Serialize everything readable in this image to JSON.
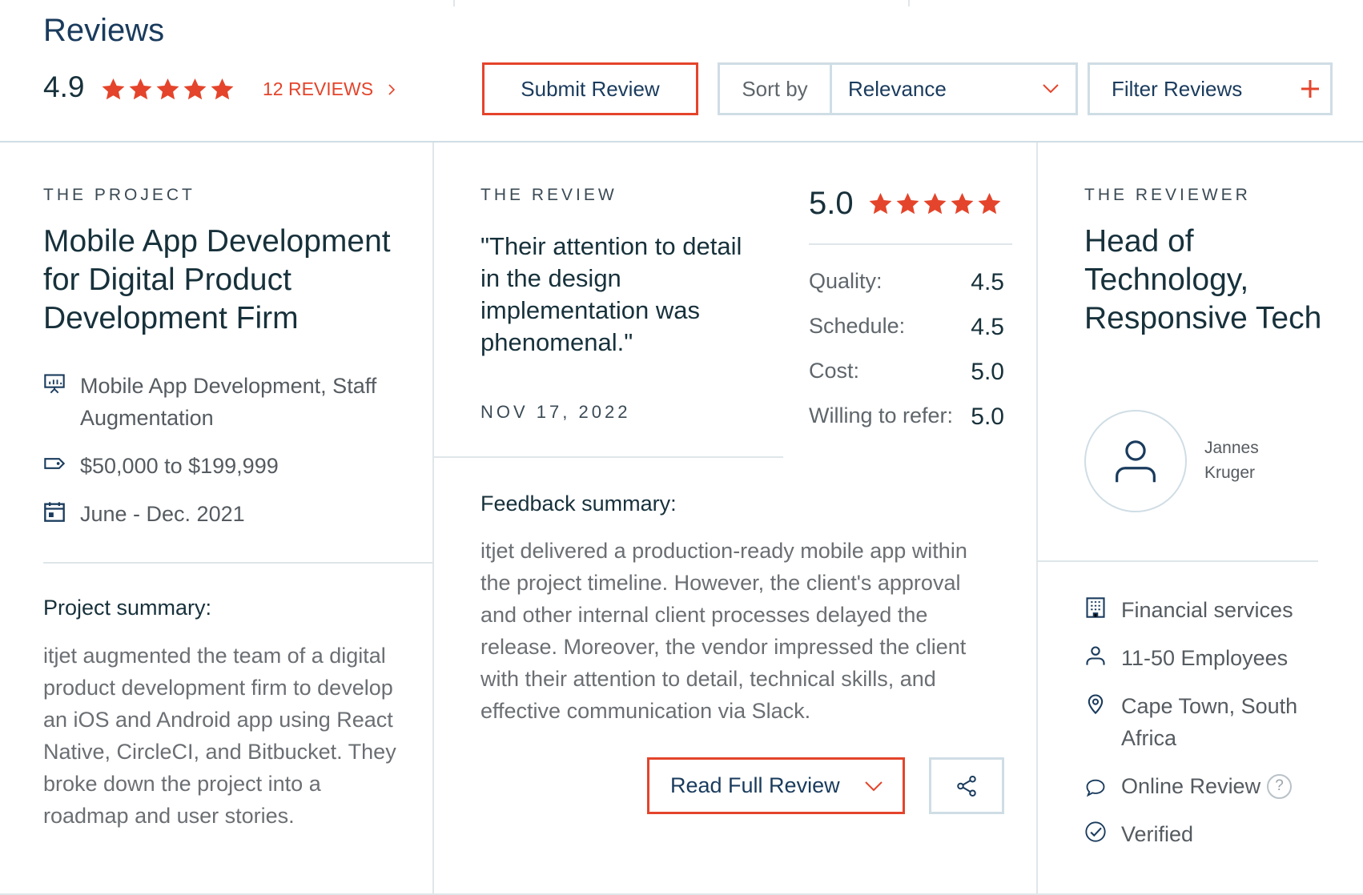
{
  "header": {
    "title": "Reviews",
    "overall_rating": "4.9",
    "stars_filled": 5,
    "reviews_link": "12 REVIEWS",
    "submit_label": "Submit Review",
    "sort_label": "Sort by",
    "sort_value": "Relevance",
    "filter_label": "Filter Reviews"
  },
  "project": {
    "section_label": "THE PROJECT",
    "title": "Mobile App Development for Digital Product Development Firm",
    "services": "Mobile App Development, Staff Augmentation",
    "budget": "$50,000 to $199,999",
    "dates": "June - Dec. 2021",
    "summary_heading": "Project summary:",
    "summary": "itjet augmented the team of a digital product development firm to develop an iOS and Android app using React Native, CircleCI, and Bitbucket. They broke down the project into a roadmap and user stories."
  },
  "review": {
    "section_label": "THE REVIEW",
    "quote": "\"Their attention to detail in the design implementation was phenomenal.\"",
    "date": "NOV 17, 2022",
    "score": "5.0",
    "stars_filled": 5,
    "ratings": [
      {
        "label": "Quality:",
        "value": "4.5"
      },
      {
        "label": "Schedule:",
        "value": "4.5"
      },
      {
        "label": "Cost:",
        "value": "5.0"
      },
      {
        "label": "Willing to refer:",
        "value": "5.0"
      }
    ],
    "feedback_heading": "Feedback summary:",
    "feedback": "itjet delivered a production-ready mobile app within the project timeline. However, the client's approval and other internal client processes delayed the release. Moreover, the vendor impressed the client with their attention to detail, technical skills, and effective communication via Slack.",
    "read_full_label": "Read Full Review"
  },
  "reviewer": {
    "section_label": "THE REVIEWER",
    "title": "Head of Technology, Responsive Tech",
    "name": "Jannes Kruger",
    "industry": "Financial services",
    "size": "11-50 Employees",
    "location": "Cape Town, South Africa",
    "review_type": "Online Review",
    "help_icon_text": "?",
    "verified": "Verified"
  },
  "colors": {
    "accent_red": "#e4442b",
    "navy": "#1a3b5d",
    "border_grey": "#cfdde5"
  },
  "icons": [
    "star-icon",
    "chevron-right-icon",
    "chevron-down-icon",
    "plus-icon",
    "presentation-icon",
    "price-tag-icon",
    "calendar-icon",
    "share-icon",
    "user-icon",
    "building-icon",
    "person-icon",
    "location-pin-icon",
    "chat-bubble-icon",
    "help-circle-icon",
    "check-circle-icon"
  ]
}
